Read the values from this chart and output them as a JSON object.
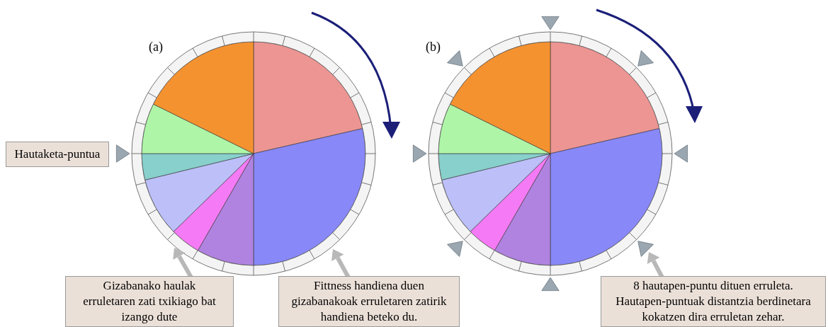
{
  "chart_data": [
    {
      "type": "pie",
      "title": "(a)",
      "categories": [
        null,
        null,
        null,
        null,
        null,
        null,
        null,
        null
      ],
      "values": [
        21.4,
        28.6,
        8.3,
        4.4,
        8.5,
        3.8,
        7.3,
        17.7
      ],
      "colors": [
        "#ec9593",
        "#8888f8",
        "#b083e0",
        "#f57af5",
        "#bcbff8",
        "#88d0cc",
        "#aef5a8",
        "#f59230"
      ],
      "annotations": [
        "Hautaketa-puntua",
        "Gizabanako haulak\nerruletaren zati txikiago bat\nizango dute",
        "Fittness handiena duen\ngizabanakoak erruletaren zatirik\nhandiena beteko du."
      ]
    },
    {
      "type": "pie",
      "title": "(b)",
      "categories": [
        null,
        null,
        null,
        null,
        null,
        null,
        null,
        null
      ],
      "values": [
        21.4,
        28.6,
        8.3,
        4.4,
        8.5,
        3.8,
        7.3,
        17.7
      ],
      "colors": [
        "#ec9593",
        "#8888f8",
        "#b083e0",
        "#f57af5",
        "#bcbff8",
        "#88d0cc",
        "#aef5a8",
        "#f59230"
      ],
      "annotations": [
        "8 hautapen-puntu dituen erruleta.\nHautapen-puntuak distantzia berdinetara\nkokatzen dira erruletan zehar."
      ]
    }
  ]
}
